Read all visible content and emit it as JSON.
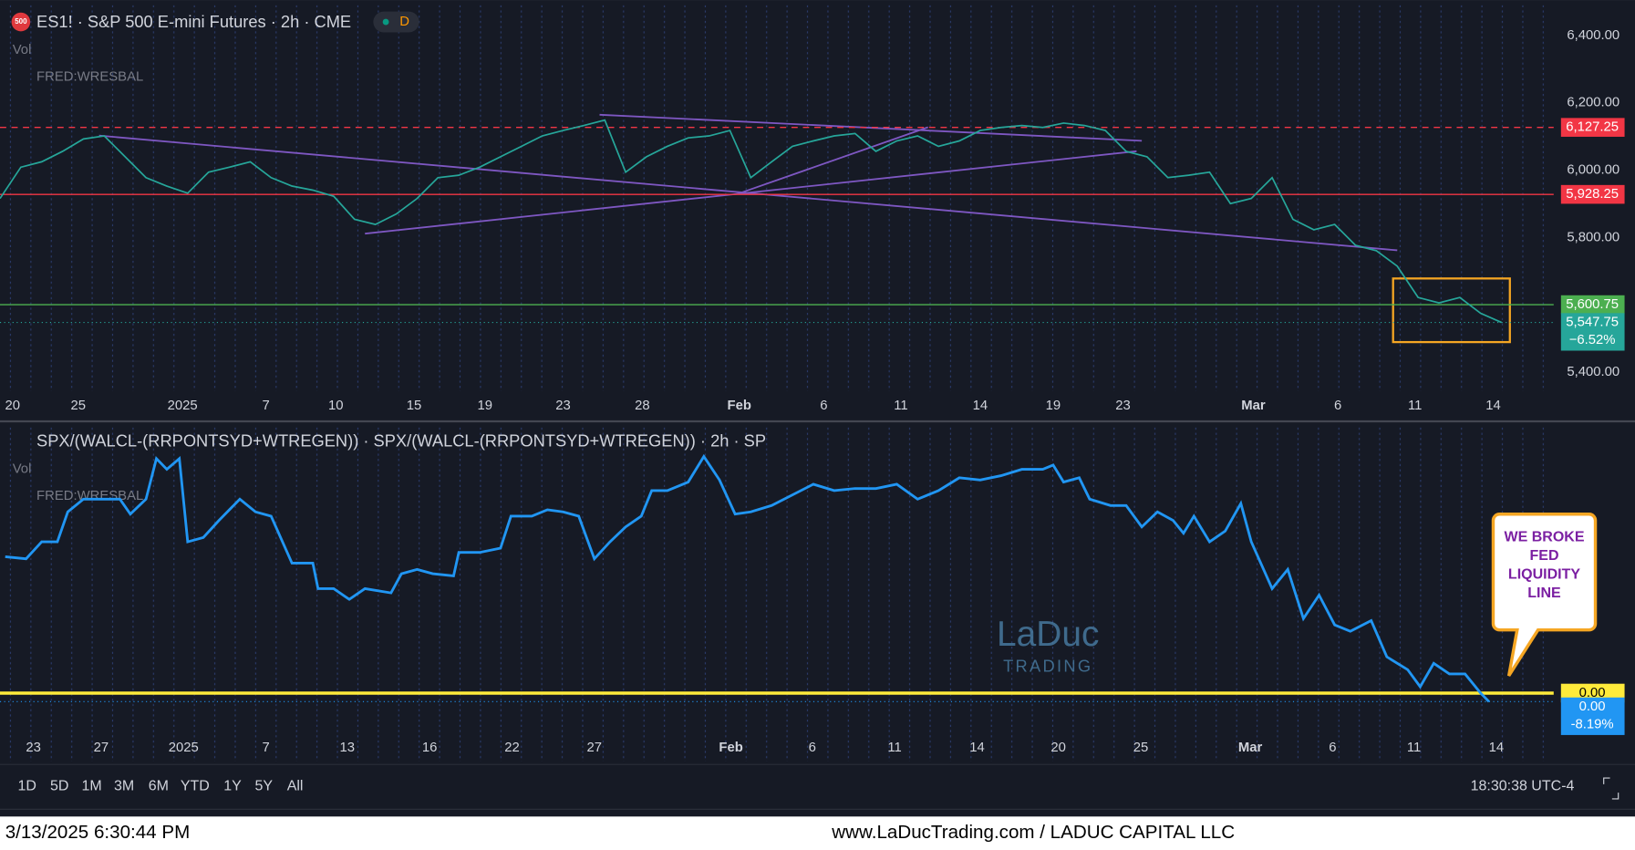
{
  "ui": {
    "icon": "500",
    "vol": "Vol",
    "fred": "FRED:WRESBAL",
    "interval": "D",
    "timeframes": [
      "1D",
      "5D",
      "1M",
      "3M",
      "6M",
      "YTD",
      "1Y",
      "5Y",
      "All"
    ],
    "clock": "18:30:38 UTC-4",
    "footer_left": "3/13/2025 6:30:44 PM",
    "footer_right": "www.LaDucTrading.com / LADUC CAPITAL LLC",
    "watermark_top": "LaDuc",
    "watermark_bottom": "TRADING"
  },
  "chart_data": [
    {
      "type": "line",
      "title": "ES1! · S&P 500 E-mini Futures · 2h · CME",
      "color": "#26a69a",
      "x": [
        0,
        2,
        4,
        6,
        8,
        10,
        12,
        14,
        16,
        18,
        20,
        22,
        24,
        26,
        28,
        30,
        32,
        34,
        36,
        38,
        40,
        42,
        44,
        46,
        48,
        50,
        52,
        54,
        56,
        58,
        60,
        62,
        64,
        66,
        68,
        70,
        72,
        74,
        76,
        78,
        80,
        82,
        84,
        86,
        88,
        90,
        92,
        94,
        96,
        98,
        100,
        102,
        104,
        106,
        108,
        110,
        112,
        114,
        116,
        118,
        120,
        122,
        124,
        126,
        128,
        130,
        132,
        134,
        136,
        138,
        140,
        142,
        144
      ],
      "values": [
        5916,
        6009,
        6025,
        6056,
        6093,
        6102,
        6040,
        5978,
        5953,
        5932,
        5994,
        6009,
        6025,
        5978,
        5953,
        5941,
        5923,
        5854,
        5839,
        5870,
        5916,
        5978,
        5985,
        6009,
        6040,
        6071,
        6102,
        6118,
        6133,
        6149,
        5994,
        6040,
        6071,
        6096,
        6102,
        6118,
        5978,
        6025,
        6071,
        6087,
        6102,
        6109,
        6056,
        6087,
        6102,
        6071,
        6087,
        6118,
        6127,
        6133,
        6127,
        6140,
        6133,
        6118,
        6056,
        6040,
        5978,
        5985,
        5994,
        5901,
        5916,
        5978,
        5854,
        5823,
        5839,
        5777,
        5761,
        5715,
        5622,
        5606,
        5622,
        5575,
        5547.75
      ],
      "xlim": [
        0,
        149
      ],
      "xticks": [
        {
          "value": 1.2,
          "label": "20"
        },
        {
          "value": 7.5,
          "label": "25"
        },
        {
          "value": 17.5,
          "label": "2025"
        },
        {
          "value": 25.5,
          "label": "7"
        },
        {
          "value": 32.2,
          "label": "10"
        },
        {
          "value": 39.7,
          "label": "15"
        },
        {
          "value": 46.5,
          "label": "19"
        },
        {
          "value": 54,
          "label": "23"
        },
        {
          "value": 61.6,
          "label": "28"
        },
        {
          "value": 70.9,
          "label": "Feb"
        },
        {
          "value": 79,
          "label": "6"
        },
        {
          "value": 86.4,
          "label": "11"
        },
        {
          "value": 94,
          "label": "14"
        },
        {
          "value": 101,
          "label": "19"
        },
        {
          "value": 107.7,
          "label": "23"
        },
        {
          "value": 120.2,
          "label": "Mar"
        },
        {
          "value": 128.3,
          "label": "6"
        },
        {
          "value": 135.7,
          "label": "11"
        },
        {
          "value": 143.2,
          "label": "14"
        }
      ],
      "ylim": [
        5344,
        6490
      ],
      "yticks": [
        {
          "value": 5400,
          "label": "5,400.00"
        },
        {
          "value": 5800,
          "label": "5,800.00"
        },
        {
          "value": 6000,
          "label": "6,000.00"
        },
        {
          "value": 6200,
          "label": "6,200.00"
        },
        {
          "value": 6400,
          "label": "6,400.00"
        }
      ],
      "levels": [
        {
          "value": 6127.25,
          "label": "6,127.25",
          "color": "#f23645",
          "dashed": true
        },
        {
          "value": 5928.25,
          "label": "5,928.25",
          "color": "#f23645",
          "dashed": false
        },
        {
          "value": 5600.75,
          "label": "5,600.75",
          "color": "#4caf50",
          "dashed": false
        }
      ],
      "last": {
        "value": 5547.75,
        "label": "5,547.75",
        "change": "−6.52%",
        "color": "#26a69a"
      }
    },
    {
      "type": "line",
      "title": "SPX/(WALCL-(RRPONTSYD+WTREGEN)) · SPX/(WALCL-(RRPONTSYD+WTREGEN)) · 2h · SP",
      "color": "#2196f3",
      "x": [
        0.5,
        2.5,
        4,
        5.5,
        6.5,
        8,
        10,
        11.5,
        12.5,
        14,
        15,
        16,
        17.2,
        18,
        19.5,
        21,
        23,
        24.5,
        26,
        28,
        30,
        30.5,
        32,
        33.5,
        35,
        37.5,
        38.5,
        40,
        41.5,
        43.5,
        44,
        46,
        48,
        49,
        51,
        52.5,
        54,
        55.5,
        57,
        58.5,
        60,
        61.5,
        62.5,
        64,
        66,
        67.5,
        69,
        70.5,
        72,
        74,
        76,
        78,
        80,
        82,
        84,
        86,
        88,
        90,
        92,
        94,
        96,
        98,
        100,
        101,
        102,
        103.5,
        104.5,
        106.5,
        108,
        109.5,
        111,
        112.5,
        113.5,
        114.5,
        116,
        117.5,
        119,
        120,
        122,
        123.5,
        125,
        126.5,
        128,
        129.5,
        131.5,
        133,
        135,
        136.2,
        137.5,
        139,
        140.5,
        142,
        142.8
      ],
      "values": [
        0.001014,
        0.001013,
        0.001021,
        0.001021,
        0.001035,
        0.001041,
        0.001041,
        0.001041,
        0.001034,
        0.001041,
        0.00106,
        0.001055,
        0.00106,
        0.001021,
        0.001023,
        0.001031,
        0.001041,
        0.001035,
        0.001033,
        0.001011,
        0.001011,
        0.000999,
        0.000999,
        0.000994,
        0.000999,
        0.000997,
        0.001006,
        0.001008,
        0.001006,
        0.001005,
        0.001016,
        0.001016,
        0.001018,
        0.001033,
        0.001033,
        0.001036,
        0.001035,
        0.001033,
        0.001013,
        0.001021,
        0.001028,
        0.001033,
        0.001045,
        0.001045,
        0.001049,
        0.001061,
        0.00105,
        0.001034,
        0.001035,
        0.001038,
        0.001043,
        0.001048,
        0.001045,
        0.001046,
        0.001046,
        0.001048,
        0.001041,
        0.001045,
        0.001051,
        0.00105,
        0.001052,
        0.001055,
        0.001055,
        0.001057,
        0.001049,
        0.001051,
        0.001041,
        0.001038,
        0.001038,
        0.001028,
        0.001035,
        0.001031,
        0.001025,
        0.001033,
        0.001021,
        0.001026,
        0.001039,
        0.001021,
        0.000999,
        0.001008,
        0.000985,
        0.000996,
        0.000982,
        0.000979,
        0.000984,
        0.000967,
        0.000961,
        0.000953,
        0.000964,
        0.000959,
        0.000959,
        0.00095,
        0.000946
      ],
      "xlim": [
        0,
        149
      ],
      "xticks": [
        {
          "value": 3.2,
          "label": "23"
        },
        {
          "value": 9.7,
          "label": "27"
        },
        {
          "value": 17.6,
          "label": "2025"
        },
        {
          "value": 25.5,
          "label": "7"
        },
        {
          "value": 33.3,
          "label": "13"
        },
        {
          "value": 41.2,
          "label": "16"
        },
        {
          "value": 49.1,
          "label": "22"
        },
        {
          "value": 57,
          "label": "27"
        },
        {
          "value": 70.1,
          "label": "Feb"
        },
        {
          "value": 77.9,
          "label": "6"
        },
        {
          "value": 85.8,
          "label": "11"
        },
        {
          "value": 93.7,
          "label": "14"
        },
        {
          "value": 101.5,
          "label": "20"
        },
        {
          "value": 109.4,
          "label": "25"
        },
        {
          "value": 119.9,
          "label": "Mar"
        },
        {
          "value": 127.8,
          "label": "6"
        },
        {
          "value": 135.6,
          "label": "11"
        },
        {
          "value": 143.5,
          "label": "14"
        }
      ],
      "ylim": [
        0.000918,
        0.001077
      ],
      "levels": [
        {
          "value": 0.00095,
          "label": "0.00",
          "color": "#ffeb3b",
          "dashed": false
        }
      ],
      "last": {
        "value": 0.000946,
        "label": "0.00",
        "change": "-8.19%",
        "color": "#2196f3"
      },
      "annotation": "WE BROKE FED LIQUIDITY LINE"
    }
  ]
}
